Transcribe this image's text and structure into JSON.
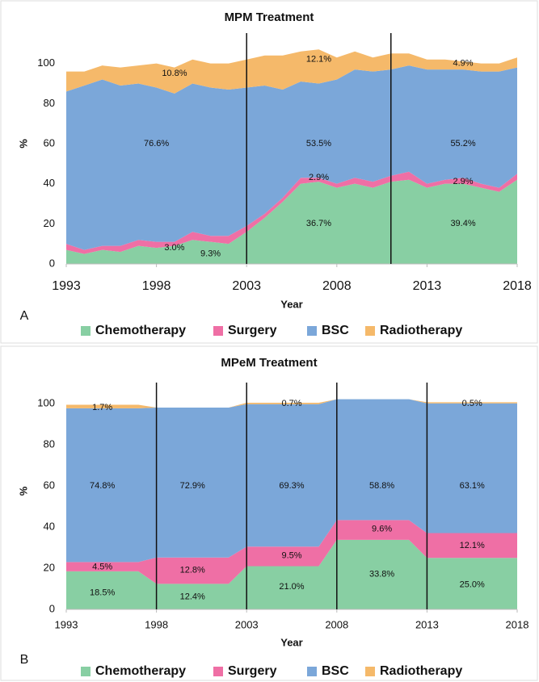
{
  "chart_data": [
    {
      "type": "area",
      "stacked": true,
      "title": "MPM Treatment",
      "panel": "A",
      "xlabel": "Year",
      "ylabel": "%",
      "x": [
        1993,
        1994,
        1995,
        1996,
        1997,
        1998,
        1999,
        2000,
        2001,
        2002,
        2003,
        2004,
        2005,
        2006,
        2007,
        2008,
        2009,
        2010,
        2011,
        2012,
        2013,
        2014,
        2015,
        2016,
        2017,
        2018
      ],
      "series": [
        {
          "name": "Chemotherapy",
          "color": "#88cfa3",
          "values": [
            7,
            5,
            7,
            6,
            9,
            8,
            9,
            12,
            11,
            10,
            16,
            23,
            31,
            40,
            41,
            38,
            40,
            38,
            41,
            42,
            38,
            40,
            40,
            38,
            36,
            42
          ]
        },
        {
          "name": "Surgery",
          "color": "#ef6fa5",
          "values": [
            3,
            2,
            2,
            3,
            3,
            3,
            2,
            4,
            3,
            4,
            3,
            2,
            2,
            3,
            2,
            2,
            3,
            3,
            3,
            4,
            2,
            2,
            3,
            2,
            2,
            3
          ]
        },
        {
          "name": "BSC",
          "color": "#7ba7d9",
          "values": [
            76,
            82,
            83,
            80,
            78,
            77,
            74,
            74,
            74,
            73,
            69,
            64,
            54,
            48,
            47,
            52,
            54,
            55,
            53,
            53,
            57,
            55,
            54,
            56,
            58,
            53
          ]
        },
        {
          "name": "Radiotherapy",
          "color": "#f5b96a",
          "values": [
            10,
            7,
            7,
            9,
            9,
            12,
            13,
            12,
            12,
            13,
            14,
            15,
            17,
            15,
            17,
            11,
            9,
            7,
            8,
            6,
            5,
            5,
            4,
            4,
            4,
            5
          ]
        }
      ],
      "xlim": [
        1993,
        2018
      ],
      "xticks": [
        1993,
        1998,
        2003,
        2008,
        2013,
        2018
      ],
      "ylim": [
        0,
        120
      ],
      "yticks": [
        0,
        20,
        40,
        60,
        80,
        100
      ],
      "grid": false,
      "vlines": [
        2003,
        2011
      ],
      "annotations": [
        {
          "text": "10.8%",
          "x": 1999,
          "y": 95
        },
        {
          "text": "76.6%",
          "x": 1998,
          "y": 60
        },
        {
          "text": "3.0%",
          "x": 1999,
          "y": 8
        },
        {
          "text": "9.3%",
          "x": 2001,
          "y": 5
        },
        {
          "text": "12.1%",
          "x": 2007,
          "y": 102
        },
        {
          "text": "53.5%",
          "x": 2007,
          "y": 60
        },
        {
          "text": "2.9%",
          "x": 2007,
          "y": 43
        },
        {
          "text": "36.7%",
          "x": 2007,
          "y": 20
        },
        {
          "text": "4.9%",
          "x": 2015,
          "y": 100
        },
        {
          "text": "55.2%",
          "x": 2015,
          "y": 60
        },
        {
          "text": "2.9%",
          "x": 2015,
          "y": 41
        },
        {
          "text": "39.4%",
          "x": 2015,
          "y": 20
        }
      ]
    },
    {
      "type": "area",
      "stacked": true,
      "title": "MPeM Treatment",
      "panel": "B",
      "xlabel": "Year",
      "ylabel": "%",
      "x": [
        1993,
        1994,
        1995,
        1996,
        1997,
        1998,
        1999,
        2000,
        2001,
        2002,
        2003,
        2004,
        2005,
        2006,
        2007,
        2008,
        2009,
        2010,
        2011,
        2012,
        2013,
        2014,
        2015,
        2016,
        2017,
        2018
      ],
      "series": [
        {
          "name": "Chemotherapy",
          "color": "#88cfa3",
          "values": [
            18.5,
            18.5,
            18.5,
            18.5,
            18.5,
            12.4,
            12.4,
            12.4,
            12.4,
            12.4,
            21.0,
            21.0,
            21.0,
            21.0,
            21.0,
            33.8,
            33.8,
            33.8,
            33.8,
            33.8,
            25.0,
            25.0,
            25.0,
            25.0,
            25.0,
            25.0
          ]
        },
        {
          "name": "Surgery",
          "color": "#ef6fa5",
          "values": [
            4.5,
            4.5,
            4.5,
            4.5,
            4.5,
            12.8,
            12.8,
            12.8,
            12.8,
            12.8,
            9.5,
            9.5,
            9.5,
            9.5,
            9.5,
            9.6,
            9.6,
            9.6,
            9.6,
            9.6,
            12.1,
            12.1,
            12.1,
            12.1,
            12.1,
            12.1
          ]
        },
        {
          "name": "BSC",
          "color": "#7ba7d9",
          "values": [
            74.8,
            74.8,
            74.8,
            74.8,
            74.8,
            72.9,
            72.9,
            72.9,
            72.9,
            72.9,
            69.3,
            69.3,
            69.3,
            69.3,
            69.3,
            58.8,
            58.8,
            58.8,
            58.8,
            58.8,
            63.1,
            63.1,
            63.1,
            63.1,
            63.1,
            63.1
          ]
        },
        {
          "name": "Radiotherapy",
          "color": "#f5b96a",
          "values": [
            1.7,
            1.7,
            1.7,
            1.7,
            1.7,
            0,
            0,
            0,
            0,
            0,
            0.7,
            0.7,
            0.7,
            0.7,
            0.7,
            0,
            0,
            0,
            0,
            0,
            0.5,
            0.5,
            0.5,
            0.5,
            0.5,
            0.5
          ]
        }
      ],
      "xlim": [
        1993,
        2018
      ],
      "xticks": [
        1993,
        1998,
        2003,
        2008,
        2013,
        2018
      ],
      "ylim": [
        0,
        115
      ],
      "yticks": [
        0,
        20,
        40,
        60,
        80,
        100
      ],
      "grid": false,
      "vlines": [
        1998,
        2003,
        2008,
        2013
      ],
      "annotations": [
        {
          "text": "1.7%",
          "x": 1995,
          "y": 98
        },
        {
          "text": "74.8%",
          "x": 1995,
          "y": 60
        },
        {
          "text": "4.5%",
          "x": 1995,
          "y": 20.5
        },
        {
          "text": "18.5%",
          "x": 1995,
          "y": 8
        },
        {
          "text": "72.9%",
          "x": 2000,
          "y": 60
        },
        {
          "text": "12.8%",
          "x": 2000,
          "y": 19
        },
        {
          "text": "12.4%",
          "x": 2000,
          "y": 6
        },
        {
          "text": "0.7%",
          "x": 2005.5,
          "y": 100
        },
        {
          "text": "69.3%",
          "x": 2005.5,
          "y": 60
        },
        {
          "text": "9.5%",
          "x": 2005.5,
          "y": 26
        },
        {
          "text": "21.0%",
          "x": 2005.5,
          "y": 11
        },
        {
          "text": "58.8%",
          "x": 2010.5,
          "y": 60
        },
        {
          "text": "9.6%",
          "x": 2010.5,
          "y": 39
        },
        {
          "text": "33.8%",
          "x": 2010.5,
          "y": 17
        },
        {
          "text": "0.5%",
          "x": 2015.5,
          "y": 100
        },
        {
          "text": "63.1%",
          "x": 2015.5,
          "y": 60
        },
        {
          "text": "12.1%",
          "x": 2015.5,
          "y": 31
        },
        {
          "text": "25.0%",
          "x": 2015.5,
          "y": 12
        }
      ]
    }
  ]
}
